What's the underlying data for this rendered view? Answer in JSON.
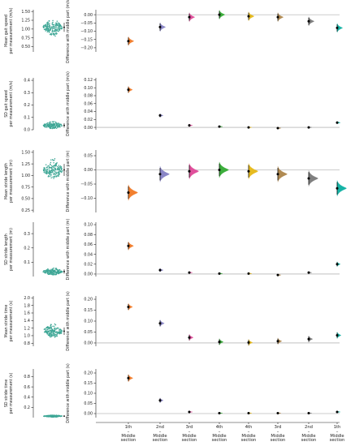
{
  "colors": {
    "swarm": "#3fa796",
    "axis": "#222222",
    "zero_line": "#9a9a9a",
    "point": "#000000",
    "groups": [
      "#f28030",
      "#8a86c6",
      "#e0509c",
      "#3cae3c",
      "#e6bb20",
      "#b08a52",
      "#7f7f7f",
      "#16b3a6"
    ]
  },
  "x_categories": [
    {
      "top": "1th",
      "bottom": "Middle\nsection"
    },
    {
      "top": "2nd",
      "bottom": "Middle\nsection"
    },
    {
      "top": "3rd",
      "bottom": "Middle\nsection"
    },
    {
      "top": "4th",
      "bottom": "Middle\nsection"
    },
    {
      "top": "4th",
      "bottom": "Middle\nsection"
    },
    {
      "top": "3rd",
      "bottom": "Middle\nsection"
    },
    {
      "top": "2nd",
      "bottom": "Middle\nsection"
    },
    {
      "top": "1th",
      "bottom": "Middle\nsection"
    }
  ],
  "chart_data": [
    {
      "type": "scatter",
      "left_ylabel": "Mean gait speed\nper measurement (m/s)",
      "left_ylim": [
        0.35,
        1.55
      ],
      "left_ticks": [
        0.5,
        0.75,
        1.0,
        1.25,
        1.5
      ],
      "left_tick_labels": [
        "0.50",
        "0.75",
        "1.00",
        "1.25",
        "1.50"
      ],
      "swarm": {
        "center": 1.05,
        "spread": 0.13,
        "min": 0.45,
        "max": 1.48
      },
      "right_ylabel": "Difference with middle part (m/s)",
      "right_ylim": [
        -0.225,
        0.03
      ],
      "right_ticks": [
        0.0,
        -0.05,
        -0.1,
        -0.15,
        -0.2
      ],
      "right_tick_labels": [
        "0.00",
        "−0.05",
        "−0.10",
        "−0.15",
        "−0.20"
      ],
      "diffs": [
        {
          "mean": -0.16,
          "lo": -0.182,
          "hi": -0.138
        },
        {
          "mean": -0.075,
          "lo": -0.097,
          "hi": -0.053
        },
        {
          "mean": -0.015,
          "lo": -0.037,
          "hi": 0.007
        },
        {
          "mean": 0.0,
          "lo": -0.022,
          "hi": 0.022
        },
        {
          "mean": -0.01,
          "lo": -0.032,
          "hi": 0.012
        },
        {
          "mean": -0.015,
          "lo": -0.037,
          "hi": 0.007
        },
        {
          "mean": -0.04,
          "lo": -0.062,
          "hi": -0.018
        },
        {
          "mean": -0.08,
          "lo": -0.102,
          "hi": -0.058
        }
      ]
    },
    {
      "type": "scatter",
      "left_ylabel": "SD gait speed\nper measurement (m/s)",
      "left_ylim": [
        0.0,
        0.42
      ],
      "left_ticks": [
        0.0,
        0.1,
        0.2,
        0.3,
        0.4
      ],
      "left_tick_labels": [
        "0.0",
        "0.1",
        "0.2",
        "0.3",
        "0.4"
      ],
      "swarm": {
        "center": 0.035,
        "spread": 0.018,
        "min": 0.01,
        "max": 0.12
      },
      "right_ylabel": "Difference with middle part (m/s)",
      "right_ylim": [
        -0.006,
        0.125
      ],
      "right_ticks": [
        0.0,
        0.02,
        0.04,
        0.06,
        0.08,
        0.1,
        0.12
      ],
      "right_tick_labels": [
        "0.00",
        "0.02",
        "0.04",
        "0.06",
        "0.08",
        "0.10",
        "0.12"
      ],
      "diffs": [
        {
          "mean": 0.095,
          "lo": 0.088,
          "hi": 0.102
        },
        {
          "mean": 0.03,
          "lo": 0.026,
          "hi": 0.034
        },
        {
          "mean": 0.005,
          "lo": 0.002,
          "hi": 0.008
        },
        {
          "mean": 0.002,
          "lo": 0.0,
          "hi": 0.004
        },
        {
          "mean": 0.0,
          "lo": -0.002,
          "hi": 0.002
        },
        {
          "mean": -0.002,
          "lo": -0.004,
          "hi": 0.0
        },
        {
          "mean": 0.0,
          "lo": -0.002,
          "hi": 0.002
        },
        {
          "mean": 0.012,
          "lo": 0.009,
          "hi": 0.015
        }
      ]
    },
    {
      "type": "scatter",
      "left_ylabel": "Mean stride length\nper measurement (m)",
      "left_ylim": [
        0.2,
        1.55
      ],
      "left_ticks": [
        0.25,
        0.5,
        0.75,
        1.0,
        1.25,
        1.5
      ],
      "left_tick_labels": [
        "0.25",
        "0.50",
        "0.75",
        "1.00",
        "1.25",
        "1.50"
      ],
      "swarm": {
        "center": 1.12,
        "spread": 0.13,
        "min": 0.55,
        "max": 1.48
      },
      "right_ylabel": "Difference with middle part (m)",
      "right_ylim": [
        -0.15,
        0.07
      ],
      "right_ticks": [
        0.05,
        0.0,
        -0.05,
        -0.1
      ],
      "right_tick_labels": [
        "0.05",
        "0.00",
        "−0.05",
        "−0.10"
      ],
      "diffs": [
        {
          "mean": -0.08,
          "lo": -0.102,
          "hi": -0.058
        },
        {
          "mean": -0.015,
          "lo": -0.037,
          "hi": 0.007
        },
        {
          "mean": -0.005,
          "lo": -0.027,
          "hi": 0.017
        },
        {
          "mean": 0.0,
          "lo": -0.022,
          "hi": 0.022
        },
        {
          "mean": -0.005,
          "lo": -0.027,
          "hi": 0.017
        },
        {
          "mean": -0.015,
          "lo": -0.037,
          "hi": 0.007
        },
        {
          "mean": -0.03,
          "lo": -0.052,
          "hi": -0.008
        },
        {
          "mean": -0.065,
          "lo": -0.087,
          "hi": -0.043
        }
      ]
    },
    {
      "type": "scatter",
      "left_ylabel": "SD stride length\nper measurement (m)",
      "left_ylim": [
        0.0,
        0.38
      ],
      "left_ticks": [
        0.1,
        0.2,
        0.3
      ],
      "left_tick_labels": [
        "0.1",
        "0.2",
        "0.3"
      ],
      "swarm": {
        "center": 0.035,
        "spread": 0.015,
        "min": 0.01,
        "max": 0.1
      },
      "right_ylabel": "Difference with middle part (m)",
      "right_ylim": [
        -0.005,
        0.105
      ],
      "right_ticks": [
        0.0,
        0.02,
        0.04,
        0.06,
        0.08,
        0.1
      ],
      "right_tick_labels": [
        "0.00",
        "0.02",
        "0.04",
        "0.06",
        "0.08",
        "0.10"
      ],
      "diffs": [
        {
          "mean": 0.057,
          "lo": 0.05,
          "hi": 0.064
        },
        {
          "mean": 0.008,
          "lo": 0.005,
          "hi": 0.011
        },
        {
          "mean": 0.003,
          "lo": 0.001,
          "hi": 0.005
        },
        {
          "mean": 0.001,
          "lo": -0.001,
          "hi": 0.003
        },
        {
          "mean": 0.001,
          "lo": -0.001,
          "hi": 0.003
        },
        {
          "mean": -0.002,
          "lo": -0.004,
          "hi": 0.0
        },
        {
          "mean": 0.003,
          "lo": 0.001,
          "hi": 0.005
        },
        {
          "mean": 0.02,
          "lo": 0.016,
          "hi": 0.024
        }
      ]
    },
    {
      "type": "scatter",
      "left_ylabel": "Mean stride time\nper measurement (s)",
      "left_ylim": [
        0.72,
        2.05
      ],
      "left_ticks": [
        0.8,
        1.0,
        1.2,
        1.4,
        1.6,
        1.8,
        2.0
      ],
      "left_tick_labels": [
        "0.8",
        "1.0",
        "1.2",
        "1.4",
        "1.6",
        "1.8",
        "2.0"
      ],
      "swarm": {
        "center": 1.12,
        "spread": 0.1,
        "min": 0.85,
        "max": 1.48
      },
      "right_ylabel": "Difference with middle part (s)",
      "right_ylim": [
        -0.015,
        0.215
      ],
      "right_ticks": [
        0.0,
        0.05,
        0.1,
        0.15,
        0.2
      ],
      "right_tick_labels": [
        "0.00",
        "0.05",
        "0.10",
        "0.15",
        "0.20"
      ],
      "diffs": [
        {
          "mean": 0.165,
          "lo": 0.152,
          "hi": 0.178
        },
        {
          "mean": 0.09,
          "lo": 0.077,
          "hi": 0.103
        },
        {
          "mean": 0.025,
          "lo": 0.013,
          "hi": 0.037
        },
        {
          "mean": 0.005,
          "lo": -0.007,
          "hi": 0.017
        },
        {
          "mean": 0.002,
          "lo": -0.01,
          "hi": 0.014
        },
        {
          "mean": 0.008,
          "lo": -0.004,
          "hi": 0.02
        },
        {
          "mean": 0.018,
          "lo": 0.006,
          "hi": 0.03
        },
        {
          "mean": 0.035,
          "lo": 0.023,
          "hi": 0.047
        }
      ]
    },
    {
      "type": "scatter",
      "left_ylabel": "SD stride time\nper measurement (s)",
      "left_ylim": [
        0.0,
        0.95
      ],
      "left_ticks": [
        0.2,
        0.4,
        0.6,
        0.8
      ],
      "left_tick_labels": [
        "0.2",
        "0.4",
        "0.6",
        "0.8"
      ],
      "swarm": {
        "center": 0.03,
        "spread": 0.012,
        "min": 0.01,
        "max": 0.08
      },
      "right_ylabel": "Difference with middle part (s)",
      "right_ylim": [
        -0.02,
        0.22
      ],
      "right_ticks": [
        0.0,
        0.05,
        0.1,
        0.15,
        0.2
      ],
      "right_tick_labels": [
        "0.00",
        "0.05",
        "0.10",
        "0.15",
        "0.20"
      ],
      "diffs": [
        {
          "mean": 0.175,
          "lo": 0.16,
          "hi": 0.19
        },
        {
          "mean": 0.065,
          "lo": 0.055,
          "hi": 0.075
        },
        {
          "mean": 0.008,
          "lo": 0.003,
          "hi": 0.013
        },
        {
          "mean": 0.002,
          "lo": 0.0,
          "hi": 0.004
        },
        {
          "mean": 0.002,
          "lo": 0.0,
          "hi": 0.004
        },
        {
          "mean": 0.002,
          "lo": 0.0,
          "hi": 0.004
        },
        {
          "mean": 0.002,
          "lo": 0.0,
          "hi": 0.004
        },
        {
          "mean": 0.008,
          "lo": 0.004,
          "hi": 0.012
        }
      ]
    }
  ]
}
